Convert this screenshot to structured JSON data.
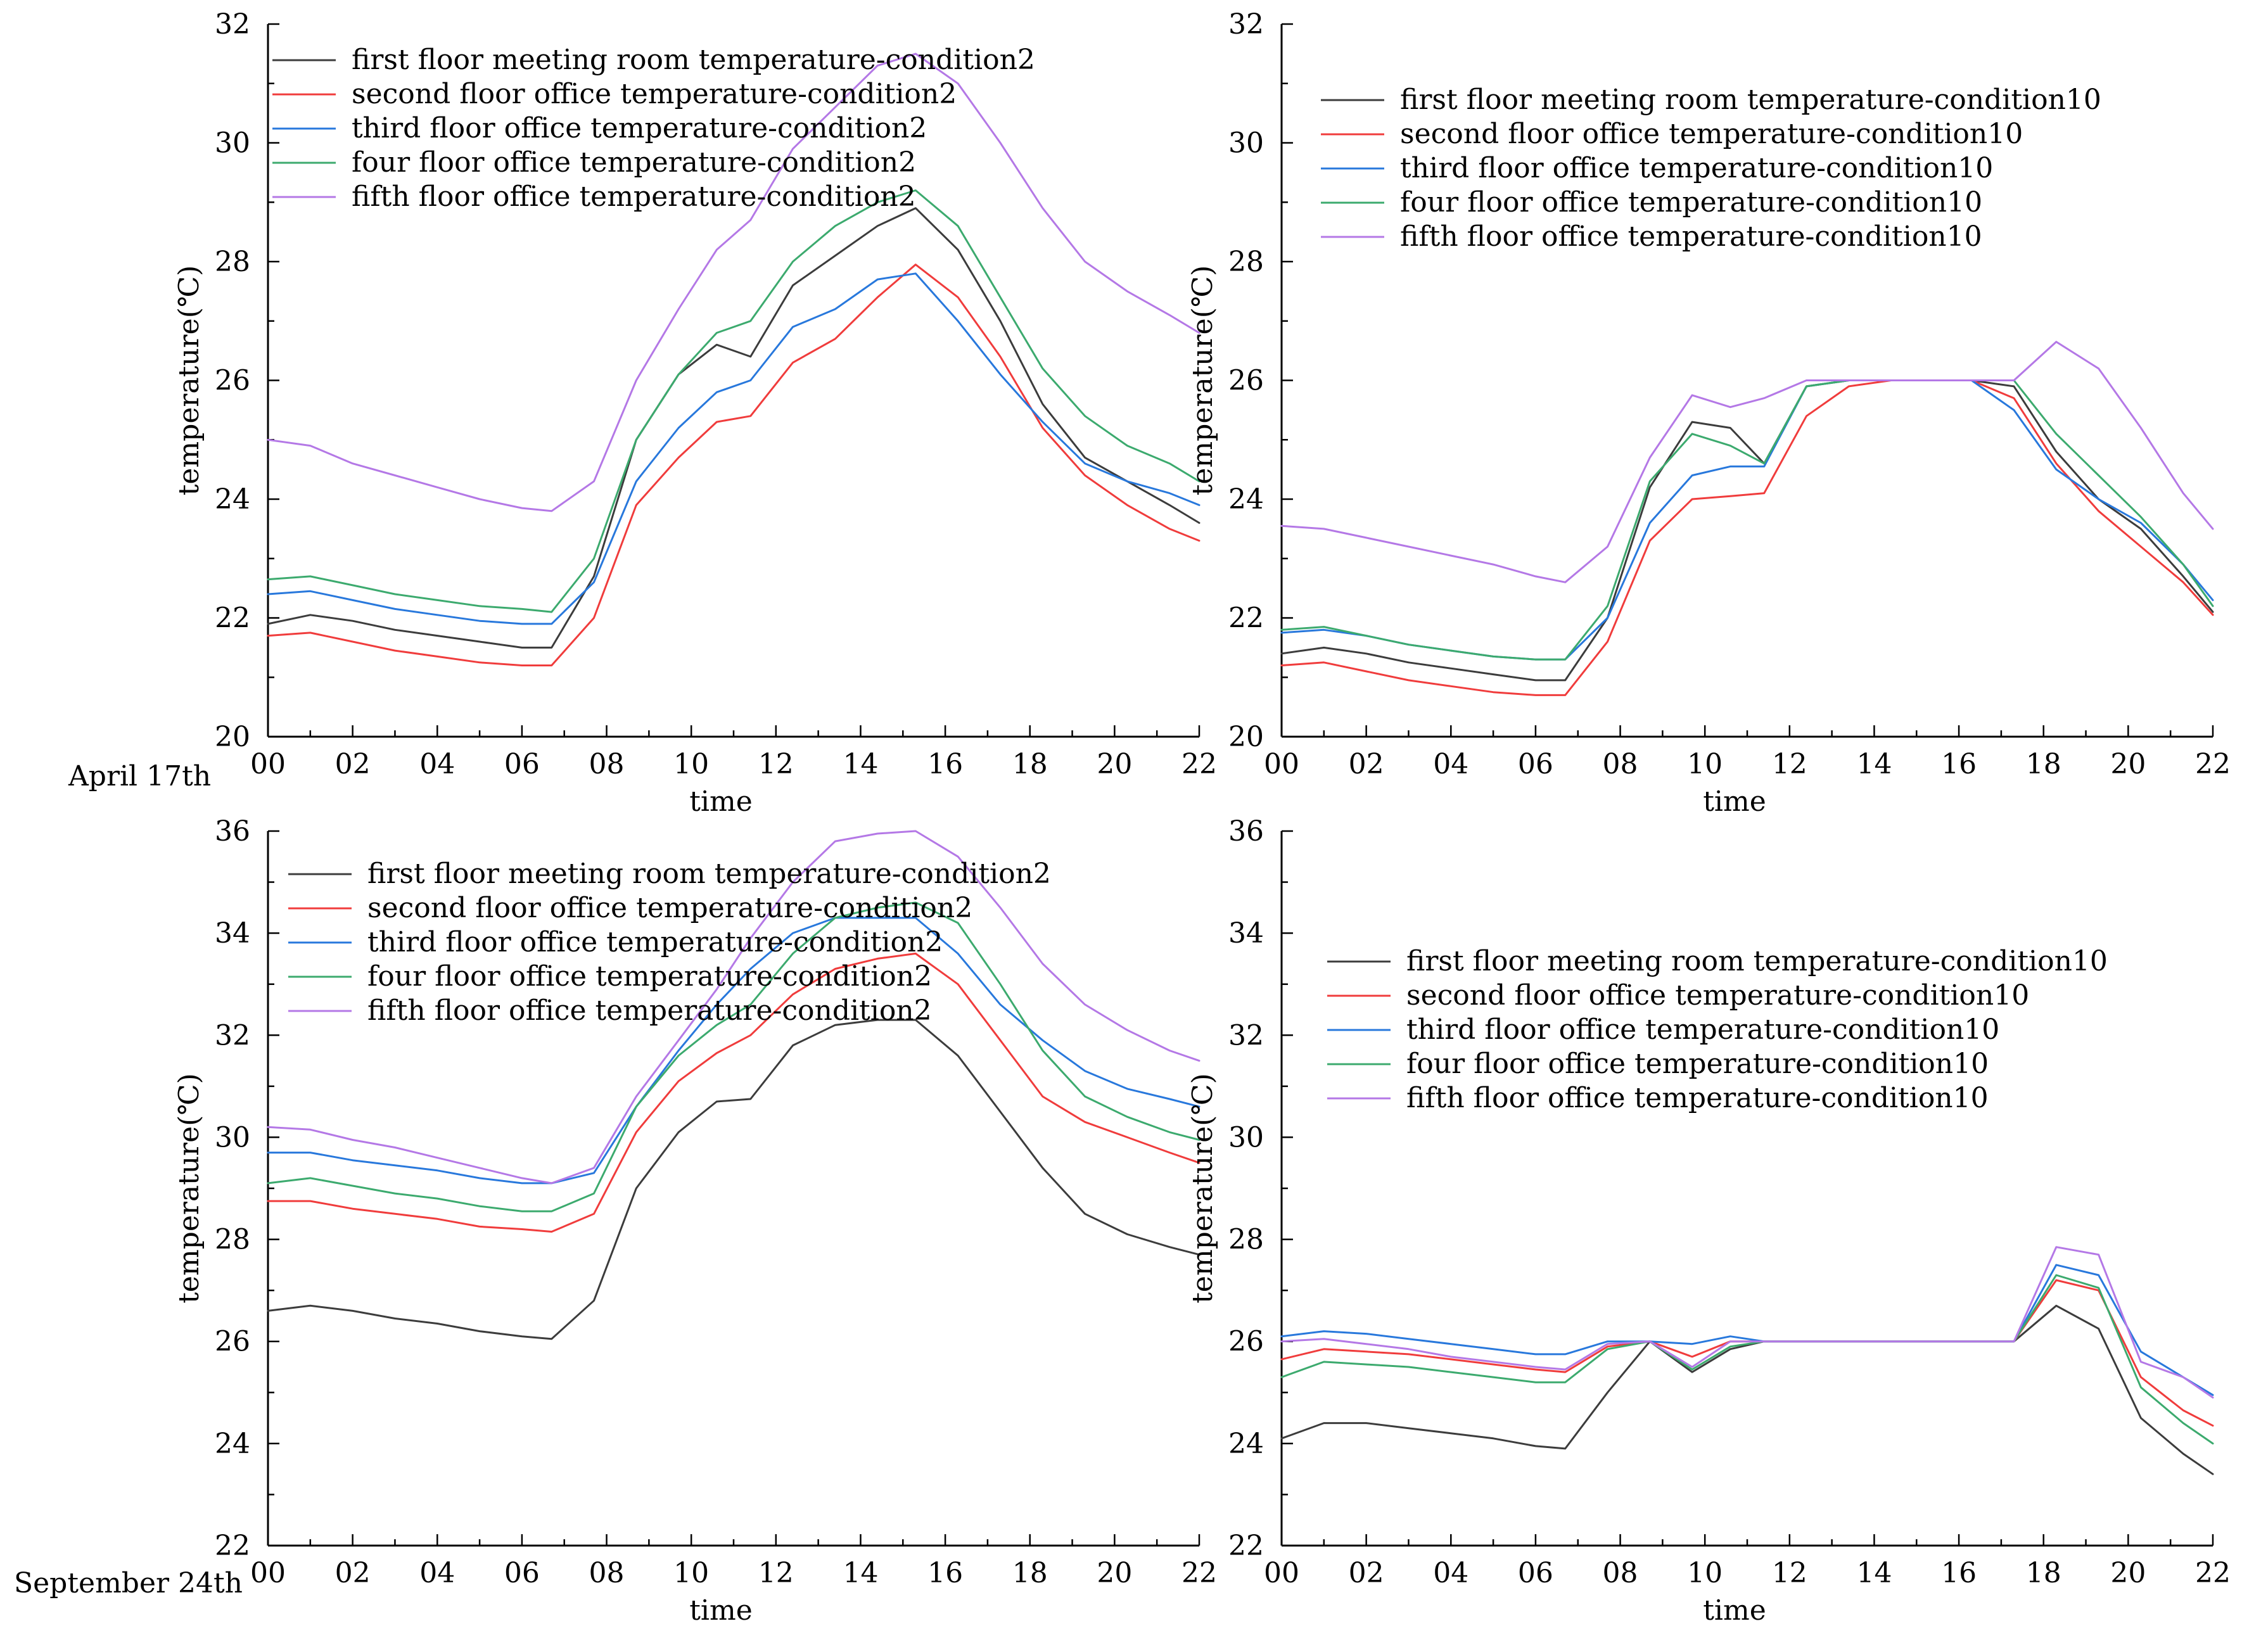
{
  "figure": {
    "row_labels": [
      "April 17th",
      "September 24th"
    ]
  },
  "chart_data": [
    {
      "type": "line",
      "title": "",
      "xlabel": "time",
      "ylabel": "temperature(℃)",
      "xlim": [
        0,
        22
      ],
      "ylim": [
        20,
        32
      ],
      "xticks": [
        "00",
        "02",
        "04",
        "06",
        "08",
        "10",
        "12",
        "14",
        "16",
        "18",
        "20",
        "22"
      ],
      "yticks": [
        "20",
        "22",
        "24",
        "26",
        "28",
        "30",
        "32"
      ],
      "legend_position": "top-left",
      "x": [
        0,
        1,
        2,
        3,
        4,
        5,
        6,
        6.7,
        7.7,
        8.7,
        9.7,
        10.6,
        11.4,
        12.4,
        13.4,
        14.4,
        15.3,
        16.3,
        17.3,
        18.3,
        19.3,
        20.3,
        21.3,
        22
      ],
      "series": [
        {
          "name": "first floor meeting room temperature-condition2",
          "color": "#3c3c3c",
          "values": [
            21.9,
            22.05,
            21.95,
            21.8,
            21.7,
            21.6,
            21.5,
            21.5,
            22.7,
            25.0,
            26.1,
            26.6,
            26.4,
            27.6,
            28.1,
            28.6,
            28.9,
            28.2,
            27.0,
            25.6,
            24.7,
            24.3,
            23.9,
            23.6
          ]
        },
        {
          "name": "second floor office temperature-condition2",
          "color": "#f03c3c",
          "values": [
            21.7,
            21.75,
            21.6,
            21.45,
            21.35,
            21.25,
            21.2,
            21.2,
            22.0,
            23.9,
            24.7,
            25.3,
            25.4,
            26.3,
            26.7,
            27.4,
            27.95,
            27.4,
            26.4,
            25.2,
            24.4,
            23.9,
            23.5,
            23.3
          ]
        },
        {
          "name": "third floor office temperature-condition2",
          "color": "#2878dc",
          "values": [
            22.4,
            22.45,
            22.3,
            22.15,
            22.05,
            21.95,
            21.9,
            21.9,
            22.6,
            24.3,
            25.2,
            25.8,
            26.0,
            26.9,
            27.2,
            27.7,
            27.8,
            27.0,
            26.1,
            25.3,
            24.6,
            24.3,
            24.1,
            23.9
          ]
        },
        {
          "name": "four floor office temperature-condition2",
          "color": "#3caa6e",
          "values": [
            22.65,
            22.7,
            22.55,
            22.4,
            22.3,
            22.2,
            22.15,
            22.1,
            23.0,
            25.0,
            26.1,
            26.8,
            27.0,
            28.0,
            28.6,
            29.0,
            29.2,
            28.6,
            27.4,
            26.2,
            25.4,
            24.9,
            24.6,
            24.3
          ]
        },
        {
          "name": "fifth floor office temperature-condition2",
          "color": "#b478e6",
          "values": [
            25.0,
            24.9,
            24.6,
            24.4,
            24.2,
            24.0,
            23.85,
            23.8,
            24.3,
            26.0,
            27.2,
            28.2,
            28.7,
            29.9,
            30.6,
            31.3,
            31.5,
            31.0,
            30.0,
            28.9,
            28.0,
            27.5,
            27.1,
            26.8
          ]
        }
      ]
    },
    {
      "type": "line",
      "title": "",
      "xlabel": "time",
      "ylabel": "temperature(℃)",
      "xlim": [
        0,
        22
      ],
      "ylim": [
        20,
        32
      ],
      "xticks": [
        "00",
        "02",
        "04",
        "06",
        "08",
        "10",
        "12",
        "14",
        "16",
        "18",
        "20",
        "22"
      ],
      "yticks": [
        "20",
        "22",
        "24",
        "26",
        "28",
        "30",
        "32"
      ],
      "legend_position": "top-left",
      "x": [
        0,
        1,
        2,
        3,
        4,
        5,
        6,
        6.7,
        7.7,
        8.7,
        9.7,
        10.6,
        11.4,
        12.4,
        13.4,
        14.4,
        15.3,
        16.3,
        17.3,
        18.3,
        19.3,
        20.3,
        21.3,
        22
      ],
      "series": [
        {
          "name": "first floor meeting room temperature-condition10",
          "color": "#3c3c3c",
          "values": [
            21.4,
            21.5,
            21.4,
            21.25,
            21.15,
            21.05,
            20.95,
            20.95,
            22.0,
            24.2,
            25.3,
            25.2,
            24.6,
            25.9,
            26.0,
            26.0,
            26.0,
            26.0,
            25.9,
            24.8,
            24.0,
            23.5,
            22.7,
            22.1
          ]
        },
        {
          "name": "second floor office temperature-condition10",
          "color": "#f03c3c",
          "values": [
            21.2,
            21.25,
            21.1,
            20.95,
            20.85,
            20.75,
            20.7,
            20.7,
            21.6,
            23.3,
            24.0,
            24.05,
            24.1,
            25.4,
            25.9,
            26.0,
            26.0,
            26.0,
            25.7,
            24.6,
            23.8,
            23.2,
            22.6,
            22.05
          ]
        },
        {
          "name": "third floor office temperature-condition10",
          "color": "#2878dc",
          "values": [
            21.75,
            21.8,
            21.7,
            21.55,
            21.45,
            21.35,
            21.3,
            21.3,
            22.0,
            23.6,
            24.4,
            24.55,
            24.55,
            25.9,
            26.0,
            26.0,
            26.0,
            26.0,
            25.5,
            24.5,
            24.0,
            23.6,
            22.9,
            22.3
          ]
        },
        {
          "name": "four floor office temperature-condition10",
          "color": "#3caa6e",
          "values": [
            21.8,
            21.85,
            21.7,
            21.55,
            21.45,
            21.35,
            21.3,
            21.3,
            22.2,
            24.3,
            25.1,
            24.9,
            24.6,
            25.9,
            26.0,
            26.0,
            26.0,
            26.0,
            26.0,
            25.1,
            24.4,
            23.7,
            22.9,
            22.2
          ]
        },
        {
          "name": "fifth floor office temperature-condition10",
          "color": "#b478e6",
          "values": [
            23.55,
            23.5,
            23.35,
            23.2,
            23.05,
            22.9,
            22.7,
            22.6,
            23.2,
            24.7,
            25.75,
            25.55,
            25.7,
            26.0,
            26.0,
            26.0,
            26.0,
            26.0,
            26.0,
            26.65,
            26.2,
            25.2,
            24.1,
            23.5
          ]
        }
      ]
    },
    {
      "type": "line",
      "title": "",
      "xlabel": "time",
      "ylabel": "temperature(℃)",
      "xlim": [
        0,
        22
      ],
      "ylim": [
        22,
        36
      ],
      "xticks": [
        "00",
        "02",
        "04",
        "06",
        "08",
        "10",
        "12",
        "14",
        "16",
        "18",
        "20",
        "22"
      ],
      "yticks": [
        "22",
        "24",
        "26",
        "28",
        "30",
        "32",
        "34",
        "36"
      ],
      "legend_position": "top-left",
      "x": [
        0,
        1,
        2,
        3,
        4,
        5,
        6,
        6.7,
        7.7,
        8.7,
        9.7,
        10.6,
        11.4,
        12.4,
        13.4,
        14.4,
        15.3,
        16.3,
        17.3,
        18.3,
        19.3,
        20.3,
        21.3,
        22
      ],
      "series": [
        {
          "name": "first floor meeting room temperature-condition2",
          "color": "#3c3c3c",
          "values": [
            26.6,
            26.7,
            26.6,
            26.45,
            26.35,
            26.2,
            26.1,
            26.05,
            26.8,
            29.0,
            30.1,
            30.7,
            30.75,
            31.8,
            32.2,
            32.3,
            32.3,
            31.6,
            30.5,
            29.4,
            28.5,
            28.1,
            27.85,
            27.7
          ]
        },
        {
          "name": "second floor office temperature-condition2",
          "color": "#f03c3c",
          "values": [
            28.75,
            28.75,
            28.6,
            28.5,
            28.4,
            28.25,
            28.2,
            28.15,
            28.5,
            30.1,
            31.1,
            31.65,
            32.0,
            32.8,
            33.3,
            33.5,
            33.6,
            33.0,
            31.9,
            30.8,
            30.3,
            30.0,
            29.7,
            29.5
          ]
        },
        {
          "name": "third floor office temperature-condition2",
          "color": "#2878dc",
          "values": [
            29.7,
            29.7,
            29.55,
            29.45,
            29.35,
            29.2,
            29.1,
            29.1,
            29.3,
            30.6,
            31.7,
            32.6,
            33.3,
            34.0,
            34.3,
            34.3,
            34.3,
            33.6,
            32.6,
            31.9,
            31.3,
            30.95,
            30.75,
            30.6
          ]
        },
        {
          "name": "four floor office temperature-condition2",
          "color": "#3caa6e",
          "values": [
            29.1,
            29.2,
            29.05,
            28.9,
            28.8,
            28.65,
            28.55,
            28.55,
            28.9,
            30.6,
            31.6,
            32.2,
            32.6,
            33.6,
            34.3,
            34.5,
            34.6,
            34.2,
            33.0,
            31.7,
            30.8,
            30.4,
            30.1,
            29.95
          ]
        },
        {
          "name": "fifth floor office temperature-condition2",
          "color": "#b478e6",
          "values": [
            30.2,
            30.15,
            29.95,
            29.8,
            29.6,
            29.4,
            29.2,
            29.1,
            29.4,
            30.8,
            31.9,
            32.9,
            33.9,
            35.0,
            35.8,
            35.95,
            36.0,
            35.5,
            34.5,
            33.4,
            32.6,
            32.1,
            31.7,
            31.5
          ]
        }
      ]
    },
    {
      "type": "line",
      "title": "",
      "xlabel": "time",
      "ylabel": "temperature(℃)",
      "xlim": [
        0,
        22
      ],
      "ylim": [
        22,
        36
      ],
      "xticks": [
        "00",
        "02",
        "04",
        "06",
        "08",
        "10",
        "12",
        "14",
        "16",
        "18",
        "20",
        "22"
      ],
      "yticks": [
        "22",
        "24",
        "26",
        "28",
        "30",
        "32",
        "34",
        "36"
      ],
      "legend_position": "top-left",
      "x": [
        0,
        1,
        2,
        3,
        4,
        5,
        6,
        6.7,
        7.7,
        8.7,
        9.7,
        10.6,
        11.4,
        12.4,
        13.4,
        14.4,
        15.3,
        16.3,
        17.3,
        18.3,
        19.3,
        20.3,
        21.3,
        22
      ],
      "series": [
        {
          "name": "first floor meeting room temperature-condition10",
          "color": "#3c3c3c",
          "values": [
            24.1,
            24.4,
            24.4,
            24.3,
            24.2,
            24.1,
            23.95,
            23.9,
            25.0,
            26.0,
            25.4,
            25.85,
            26.0,
            26.0,
            26.0,
            26.0,
            26.0,
            26.0,
            26.0,
            26.7,
            26.25,
            24.5,
            23.8,
            23.4
          ]
        },
        {
          "name": "second floor office temperature-condition10",
          "color": "#f03c3c",
          "values": [
            25.65,
            25.85,
            25.8,
            25.75,
            25.65,
            25.55,
            25.45,
            25.4,
            25.9,
            26.0,
            25.7,
            26.0,
            26.0,
            26.0,
            26.0,
            26.0,
            26.0,
            26.0,
            26.0,
            27.2,
            27.0,
            25.3,
            24.65,
            24.35
          ]
        },
        {
          "name": "third floor office temperature-condition10",
          "color": "#2878dc",
          "values": [
            26.1,
            26.2,
            26.15,
            26.05,
            25.95,
            25.85,
            25.75,
            25.75,
            26.0,
            26.0,
            25.95,
            26.1,
            26.0,
            26.0,
            26.0,
            26.0,
            26.0,
            26.0,
            26.0,
            27.5,
            27.3,
            25.8,
            25.3,
            24.95
          ]
        },
        {
          "name": "four floor office temperature-condition10",
          "color": "#3caa6e",
          "values": [
            25.3,
            25.6,
            25.55,
            25.5,
            25.4,
            25.3,
            25.2,
            25.2,
            25.85,
            26.0,
            25.45,
            25.9,
            26.0,
            26.0,
            26.0,
            26.0,
            26.0,
            26.0,
            26.0,
            27.3,
            27.05,
            25.1,
            24.4,
            24.0
          ]
        },
        {
          "name": "fifth floor office temperature-condition10",
          "color": "#b478e6",
          "values": [
            26.0,
            26.05,
            25.95,
            25.85,
            25.7,
            25.6,
            25.5,
            25.45,
            25.95,
            26.0,
            25.5,
            26.0,
            26.0,
            26.0,
            26.0,
            26.0,
            26.0,
            26.0,
            26.0,
            27.85,
            27.7,
            25.6,
            25.3,
            24.9
          ]
        }
      ]
    }
  ]
}
